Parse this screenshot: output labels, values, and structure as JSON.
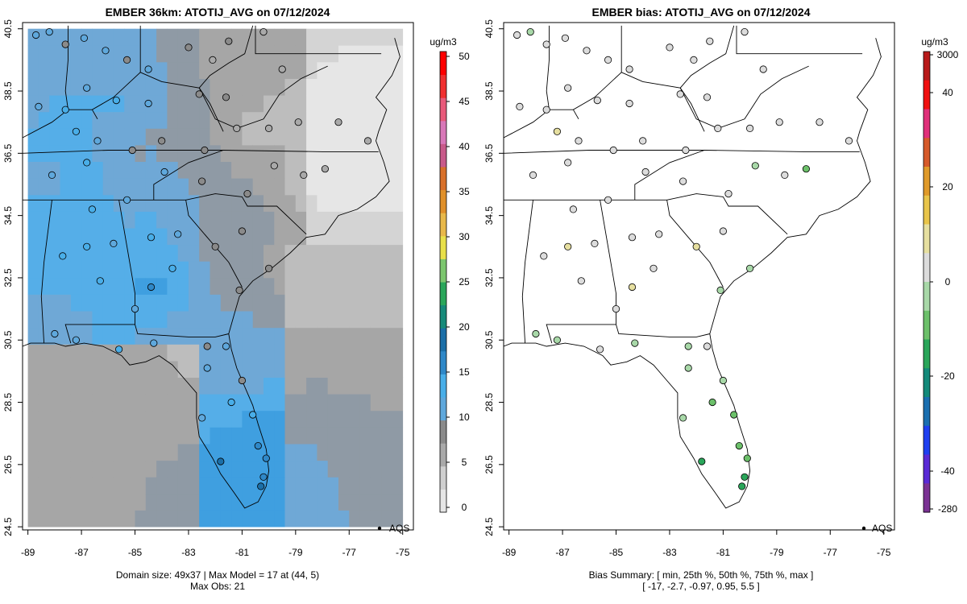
{
  "colors": {
    "frame": "#000000",
    "coast": "#000000",
    "obs_stroke": "#000000",
    "left_ramp": [
      "#e6e6e6",
      "#d4d4d4",
      "#bdbdbd",
      "#a6a6a6",
      "#8f9aa5",
      "#6fa8d6",
      "#55aee8",
      "#3f9fe0"
    ],
    "bias_ramp": [
      "#7b3294",
      "#5a2ad6",
      "#1f3ff0",
      "#1a6fb0",
      "#138a7a",
      "#2aa65a",
      "#6cc06a",
      "#a8d8a8",
      "#dcdcdc",
      "#e6dfa0",
      "#e8c44a",
      "#e09a2a",
      "#d65a2a",
      "#e0307a",
      "#f01010",
      "#b81a1a"
    ],
    "conc_ramp": [
      "#e6e6e6",
      "#cfcfcf",
      "#a9a9a9",
      "#8a8a8a",
      "#5fa8dc",
      "#49aee8",
      "#2f88c8",
      "#1b6fa8",
      "#178a7a",
      "#2aa65a",
      "#7cc66e",
      "#e8e04a",
      "#e8b84a",
      "#e0902a",
      "#d8702a",
      "#c85a8a",
      "#d878b8",
      "#e85a7a",
      "#f03030",
      "#ff0000"
    ]
  },
  "chart_data": [
    {
      "type": "map",
      "title": "EMBER 36km: ATOTIJ_AVG on 07/12/2024",
      "xlim": [
        -89.2,
        -74.6
      ],
      "ylim": [
        24.4,
        40.7
      ],
      "x_ticks": [
        -89,
        -87,
        -85,
        -83,
        -81,
        -79,
        -77,
        -75
      ],
      "x_tick_labels": [
        "-89",
        "-87",
        "-85",
        "-83",
        "-81",
        "-79",
        "-77",
        "-75"
      ],
      "y_ticks": [
        24.5,
        26.5,
        28.5,
        30.5,
        32.5,
        34.5,
        36.5,
        38.5,
        40.5
      ],
      "y_tick_labels": [
        "24.5",
        "26.5",
        "28.5",
        "30.5",
        "32.5",
        "34.5",
        "36.5",
        "38.5",
        "40.5"
      ],
      "legend_label": "AQS",
      "colorbar": {
        "unit": "ug/m3",
        "min": 0,
        "max": 50,
        "ticks": [
          0,
          5,
          10,
          15,
          20,
          25,
          30,
          35,
          40,
          45,
          50
        ],
        "tick_labels": [
          "0",
          "5",
          "10",
          "15",
          "20",
          "25",
          "30",
          "35",
          "40",
          "45",
          "50"
        ]
      },
      "footer": [
        "Domain size: 49x37 | Max Model = 17 at (44, 5)",
        "Max Obs: 21"
      ],
      "sites": [
        {
          "lon": -88.7,
          "lat": 40.3,
          "v": 11
        },
        {
          "lon": -88.2,
          "lat": 40.4,
          "v": 10
        },
        {
          "lon": -87.6,
          "lat": 40.0,
          "v": 9
        },
        {
          "lon": -86.9,
          "lat": 40.2,
          "v": 10
        },
        {
          "lon": -86.1,
          "lat": 39.8,
          "v": 11
        },
        {
          "lon": -85.3,
          "lat": 39.5,
          "v": 9
        },
        {
          "lon": -84.5,
          "lat": 39.2,
          "v": 10
        },
        {
          "lon": -83.0,
          "lat": 39.9,
          "v": 8
        },
        {
          "lon": -82.1,
          "lat": 39.5,
          "v": 6
        },
        {
          "lon": -81.5,
          "lat": 40.1,
          "v": 7
        },
        {
          "lon": -80.2,
          "lat": 40.4,
          "v": 6
        },
        {
          "lon": -79.5,
          "lat": 39.2,
          "v": 6
        },
        {
          "lon": -81.6,
          "lat": 38.3,
          "v": 7
        },
        {
          "lon": -82.6,
          "lat": 38.4,
          "v": 8
        },
        {
          "lon": -84.5,
          "lat": 38.1,
          "v": 10
        },
        {
          "lon": -85.7,
          "lat": 38.2,
          "v": 12
        },
        {
          "lon": -86.8,
          "lat": 38.6,
          "v": 11
        },
        {
          "lon": -87.6,
          "lat": 37.9,
          "v": 12
        },
        {
          "lon": -88.6,
          "lat": 38.0,
          "v": 11
        },
        {
          "lon": -87.2,
          "lat": 37.2,
          "v": 13
        },
        {
          "lon": -86.4,
          "lat": 36.9,
          "v": 10
        },
        {
          "lon": -85.1,
          "lat": 36.6,
          "v": 9
        },
        {
          "lon": -84.0,
          "lat": 36.9,
          "v": 9
        },
        {
          "lon": -82.4,
          "lat": 36.6,
          "v": 8
        },
        {
          "lon": -81.2,
          "lat": 37.3,
          "v": 5
        },
        {
          "lon": -80.0,
          "lat": 37.3,
          "v": 5
        },
        {
          "lon": -78.9,
          "lat": 37.5,
          "v": 4
        },
        {
          "lon": -77.4,
          "lat": 37.5,
          "v": 4
        },
        {
          "lon": -76.3,
          "lat": 36.9,
          "v": 4
        },
        {
          "lon": -77.9,
          "lat": 36.0,
          "v": 5
        },
        {
          "lon": -78.7,
          "lat": 35.8,
          "v": 5
        },
        {
          "lon": -79.8,
          "lat": 36.1,
          "v": 6
        },
        {
          "lon": -80.8,
          "lat": 35.2,
          "v": 8
        },
        {
          "lon": -82.5,
          "lat": 35.6,
          "v": 9
        },
        {
          "lon": -83.9,
          "lat": 35.9,
          "v": 10
        },
        {
          "lon": -85.3,
          "lat": 35.0,
          "v": 11
        },
        {
          "lon": -86.8,
          "lat": 36.2,
          "v": 12
        },
        {
          "lon": -88.1,
          "lat": 35.8,
          "v": 11
        },
        {
          "lon": -86.6,
          "lat": 34.7,
          "v": 12
        },
        {
          "lon": -87.7,
          "lat": 33.2,
          "v": 13
        },
        {
          "lon": -86.8,
          "lat": 33.5,
          "v": 12
        },
        {
          "lon": -85.8,
          "lat": 33.6,
          "v": 11
        },
        {
          "lon": -84.4,
          "lat": 33.8,
          "v": 12
        },
        {
          "lon": -83.4,
          "lat": 33.9,
          "v": 11
        },
        {
          "lon": -82.0,
          "lat": 33.5,
          "v": 8
        },
        {
          "lon": -81.0,
          "lat": 34.0,
          "v": 8
        },
        {
          "lon": -80.0,
          "lat": 32.8,
          "v": 7
        },
        {
          "lon": -81.1,
          "lat": 32.1,
          "v": 9
        },
        {
          "lon": -83.6,
          "lat": 32.8,
          "v": 12
        },
        {
          "lon": -84.4,
          "lat": 32.2,
          "v": 15
        },
        {
          "lon": -85.0,
          "lat": 31.5,
          "v": 11
        },
        {
          "lon": -86.3,
          "lat": 32.4,
          "v": 12
        },
        {
          "lon": -88.0,
          "lat": 30.7,
          "v": 10
        },
        {
          "lon": -87.2,
          "lat": 30.5,
          "v": 11
        },
        {
          "lon": -85.6,
          "lat": 30.2,
          "v": 12
        },
        {
          "lon": -84.3,
          "lat": 30.4,
          "v": 10
        },
        {
          "lon": -82.3,
          "lat": 30.3,
          "v": 9
        },
        {
          "lon": -81.6,
          "lat": 30.3,
          "v": 10
        },
        {
          "lon": -81.0,
          "lat": 29.2,
          "v": 9
        },
        {
          "lon": -82.3,
          "lat": 29.6,
          "v": 10
        },
        {
          "lon": -82.5,
          "lat": 28.0,
          "v": 11
        },
        {
          "lon": -81.4,
          "lat": 28.5,
          "v": 13
        },
        {
          "lon": -80.6,
          "lat": 28.1,
          "v": 13
        },
        {
          "lon": -80.1,
          "lat": 26.7,
          "v": 17
        },
        {
          "lon": -80.2,
          "lat": 26.1,
          "v": 17
        },
        {
          "lon": -80.3,
          "lat": 25.8,
          "v": 18
        },
        {
          "lon": -81.8,
          "lat": 26.6,
          "v": 18
        },
        {
          "lon": -80.4,
          "lat": 27.1,
          "v": 15
        }
      ]
    },
    {
      "type": "map",
      "title": "EMBER bias: ATOTIJ_AVG on 07/12/2024",
      "xlim": [
        -89.2,
        -74.6
      ],
      "ylim": [
        24.4,
        40.7
      ],
      "x_ticks": [
        -89,
        -87,
        -85,
        -83,
        -81,
        -79,
        -77,
        -75
      ],
      "x_tick_labels": [
        "-89",
        "-87",
        "-85",
        "-83",
        "-81",
        "-79",
        "-77",
        "-75"
      ],
      "y_ticks": [
        24.5,
        26.5,
        28.5,
        30.5,
        32.5,
        34.5,
        36.5,
        38.5,
        40.5
      ],
      "y_tick_labels": [
        "24.5",
        "26.5",
        "28.5",
        "30.5",
        "32.5",
        "34.5",
        "36.5",
        "38.5",
        "40.5"
      ],
      "legend_label": "AQS",
      "colorbar": {
        "unit": "ug/m3",
        "ticks": [
          3000,
          40,
          20,
          0,
          -20,
          -40,
          -280
        ],
        "tick_labels": [
          "3000",
          "40",
          "20",
          "0",
          "-20",
          "-40",
          "-280"
        ]
      },
      "footer": [
        "Bias Summary: [ min, 25th %, 50th %, 75th %, max ]",
        "[ -17,   -2.7,   -0.97,   0.95,   5.5 ]"
      ],
      "sites": [
        {
          "lon": -88.7,
          "lat": 40.3,
          "v": -2
        },
        {
          "lon": -88.2,
          "lat": 40.4,
          "v": -3
        },
        {
          "lon": -87.6,
          "lat": 40.0,
          "v": 0
        },
        {
          "lon": -86.9,
          "lat": 40.2,
          "v": -1
        },
        {
          "lon": -86.1,
          "lat": 39.8,
          "v": 2
        },
        {
          "lon": -85.3,
          "lat": 39.5,
          "v": -2
        },
        {
          "lon": -84.5,
          "lat": 39.2,
          "v": -1
        },
        {
          "lon": -83.0,
          "lat": 39.9,
          "v": 0
        },
        {
          "lon": -82.1,
          "lat": 39.5,
          "v": -1
        },
        {
          "lon": -81.5,
          "lat": 40.1,
          "v": 0
        },
        {
          "lon": -80.2,
          "lat": 40.4,
          "v": -1
        },
        {
          "lon": -79.5,
          "lat": 39.2,
          "v": -1
        },
        {
          "lon": -81.6,
          "lat": 38.3,
          "v": 0
        },
        {
          "lon": -82.6,
          "lat": 38.4,
          "v": -1
        },
        {
          "lon": -84.5,
          "lat": 38.1,
          "v": 0
        },
        {
          "lon": -85.7,
          "lat": 38.2,
          "v": 1
        },
        {
          "lon": -86.8,
          "lat": 38.6,
          "v": -2
        },
        {
          "lon": -87.6,
          "lat": 37.9,
          "v": -1
        },
        {
          "lon": -88.6,
          "lat": 38.0,
          "v": 0
        },
        {
          "lon": -87.2,
          "lat": 37.2,
          "v": 3
        },
        {
          "lon": -86.4,
          "lat": 36.9,
          "v": -1
        },
        {
          "lon": -85.1,
          "lat": 36.6,
          "v": 0
        },
        {
          "lon": -84.0,
          "lat": 36.9,
          "v": 1
        },
        {
          "lon": -82.4,
          "lat": 36.6,
          "v": -2
        },
        {
          "lon": -81.2,
          "lat": 37.3,
          "v": -2
        },
        {
          "lon": -80.0,
          "lat": 37.3,
          "v": -1
        },
        {
          "lon": -78.9,
          "lat": 37.5,
          "v": 0
        },
        {
          "lon": -77.4,
          "lat": 37.5,
          "v": -2
        },
        {
          "lon": -76.3,
          "lat": 36.9,
          "v": -1
        },
        {
          "lon": -77.9,
          "lat": 36.0,
          "v": -9
        },
        {
          "lon": -78.7,
          "lat": 35.8,
          "v": -2
        },
        {
          "lon": -79.8,
          "lat": 36.1,
          "v": -3
        },
        {
          "lon": -80.8,
          "lat": 35.2,
          "v": 0
        },
        {
          "lon": -82.5,
          "lat": 35.6,
          "v": -2
        },
        {
          "lon": -83.9,
          "lat": 35.9,
          "v": 0
        },
        {
          "lon": -85.3,
          "lat": 35.0,
          "v": 0
        },
        {
          "lon": -86.8,
          "lat": 36.2,
          "v": 2
        },
        {
          "lon": -88.1,
          "lat": 35.8,
          "v": 1
        },
        {
          "lon": -86.6,
          "lat": 34.7,
          "v": -1
        },
        {
          "lon": -87.7,
          "lat": 33.2,
          "v": -2
        },
        {
          "lon": -86.8,
          "lat": 33.5,
          "v": 4
        },
        {
          "lon": -85.8,
          "lat": 33.6,
          "v": 0
        },
        {
          "lon": -84.4,
          "lat": 33.8,
          "v": 2
        },
        {
          "lon": -83.4,
          "lat": 33.9,
          "v": -1
        },
        {
          "lon": -82.0,
          "lat": 33.5,
          "v": 5
        },
        {
          "lon": -81.0,
          "lat": 34.0,
          "v": 0
        },
        {
          "lon": -80.0,
          "lat": 32.8,
          "v": -5
        },
        {
          "lon": -81.1,
          "lat": 32.1,
          "v": -4
        },
        {
          "lon": -83.6,
          "lat": 32.8,
          "v": 0
        },
        {
          "lon": -84.4,
          "lat": 32.2,
          "v": 5
        },
        {
          "lon": -85.0,
          "lat": 31.5,
          "v": -2
        },
        {
          "lon": -86.3,
          "lat": 32.4,
          "v": -1
        },
        {
          "lon": -88.0,
          "lat": 30.7,
          "v": -3
        },
        {
          "lon": -87.2,
          "lat": 30.5,
          "v": -4
        },
        {
          "lon": -85.6,
          "lat": 30.2,
          "v": -2
        },
        {
          "lon": -84.3,
          "lat": 30.4,
          "v": -3
        },
        {
          "lon": -82.3,
          "lat": 30.3,
          "v": -4
        },
        {
          "lon": -81.6,
          "lat": 30.3,
          "v": 0
        },
        {
          "lon": -81.0,
          "lat": 29.2,
          "v": -5
        },
        {
          "lon": -82.3,
          "lat": 29.6,
          "v": -6
        },
        {
          "lon": -82.5,
          "lat": 28.0,
          "v": -7
        },
        {
          "lon": -81.4,
          "lat": 28.5,
          "v": -10
        },
        {
          "lon": -80.6,
          "lat": 28.1,
          "v": -11
        },
        {
          "lon": -80.1,
          "lat": 26.7,
          "v": -12
        },
        {
          "lon": -80.2,
          "lat": 26.1,
          "v": -13
        },
        {
          "lon": -80.3,
          "lat": 25.8,
          "v": -15
        },
        {
          "lon": -81.8,
          "lat": 26.6,
          "v": -17
        },
        {
          "lon": -80.4,
          "lat": 27.1,
          "v": -10
        }
      ]
    }
  ]
}
